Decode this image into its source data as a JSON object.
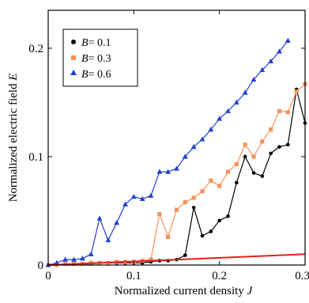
{
  "chart_data": {
    "type": "line",
    "title": "",
    "xlabel": "Normalized current density",
    "xlabel_symbol": "J",
    "ylabel": "Normalized electric field",
    "ylabel_symbol": "E",
    "xlim": [
      0,
      0.3
    ],
    "ylim": [
      0,
      0.235
    ],
    "x_ticks": [
      0,
      0.1,
      0.2,
      0.3
    ],
    "x_tick_labels": [
      "0",
      "0.1",
      "0.2",
      "0.3"
    ],
    "y_ticks": [
      0,
      0.1,
      0.2
    ],
    "y_tick_labels": [
      "0",
      "0.1",
      "0.2"
    ],
    "grid": false,
    "legend_position": "top-left",
    "series": [
      {
        "name": "B = 0.1",
        "legend_symbol": "B",
        "legend_value": "= 0.1",
        "color": "#000000",
        "marker": "circle",
        "x": [
          0.0,
          0.01,
          0.02,
          0.03,
          0.04,
          0.05,
          0.06,
          0.07,
          0.08,
          0.09,
          0.1,
          0.11,
          0.12,
          0.13,
          0.14,
          0.15,
          0.16,
          0.17,
          0.18,
          0.19,
          0.2,
          0.21,
          0.22,
          0.23,
          0.24,
          0.25,
          0.26,
          0.27,
          0.28,
          0.29,
          0.3
        ],
        "y": [
          0.0,
          0.0,
          0.001,
          0.001,
          0.001,
          0.001,
          0.002,
          0.002,
          0.002,
          0.002,
          0.002,
          0.002,
          0.003,
          0.004,
          0.004,
          0.005,
          0.009,
          0.053,
          0.027,
          0.031,
          0.041,
          0.045,
          0.076,
          0.1,
          0.085,
          0.082,
          0.103,
          0.109,
          0.111,
          0.162,
          0.131
        ]
      },
      {
        "name": "B = 0.3",
        "legend_symbol": "B",
        "legend_value": "= 0.3",
        "color": "#f4925b",
        "marker": "square",
        "x": [
          0.0,
          0.01,
          0.02,
          0.03,
          0.04,
          0.05,
          0.06,
          0.07,
          0.08,
          0.09,
          0.1,
          0.11,
          0.12,
          0.13,
          0.14,
          0.15,
          0.16,
          0.17,
          0.18,
          0.19,
          0.2,
          0.21,
          0.22,
          0.23,
          0.24,
          0.25,
          0.26,
          0.27,
          0.28,
          0.29,
          0.3
        ],
        "y": [
          0.0,
          0.0,
          0.001,
          0.001,
          0.001,
          0.002,
          0.002,
          0.002,
          0.003,
          0.003,
          0.003,
          0.004,
          0.005,
          0.047,
          0.026,
          0.051,
          0.058,
          0.062,
          0.068,
          0.078,
          0.073,
          0.086,
          0.093,
          0.111,
          0.1,
          0.114,
          0.125,
          0.142,
          0.141,
          0.16,
          0.167
        ]
      },
      {
        "name": "B = 0.6",
        "legend_symbol": "B",
        "legend_value": "= 0.6",
        "color": "#1f3fd0",
        "marker": "triangle",
        "x": [
          0.0,
          0.01,
          0.02,
          0.03,
          0.04,
          0.05,
          0.06,
          0.07,
          0.08,
          0.09,
          0.1,
          0.11,
          0.12,
          0.13,
          0.14,
          0.15,
          0.16,
          0.17,
          0.18,
          0.19,
          0.2,
          0.21,
          0.22,
          0.23,
          0.24,
          0.25,
          0.26,
          0.27,
          0.28
        ],
        "y": [
          0.0,
          0.002,
          0.005,
          0.005,
          0.006,
          0.01,
          0.043,
          0.023,
          0.039,
          0.056,
          0.063,
          0.061,
          0.064,
          0.086,
          0.086,
          0.089,
          0.1,
          0.109,
          0.116,
          0.125,
          0.135,
          0.142,
          0.15,
          0.159,
          0.171,
          0.18,
          0.188,
          0.197,
          0.207
        ]
      },
      {
        "name": "",
        "color": "#e3201b",
        "marker": "none",
        "x": [
          0.0,
          0.3
        ],
        "y": [
          0.0,
          0.01
        ]
      }
    ]
  }
}
